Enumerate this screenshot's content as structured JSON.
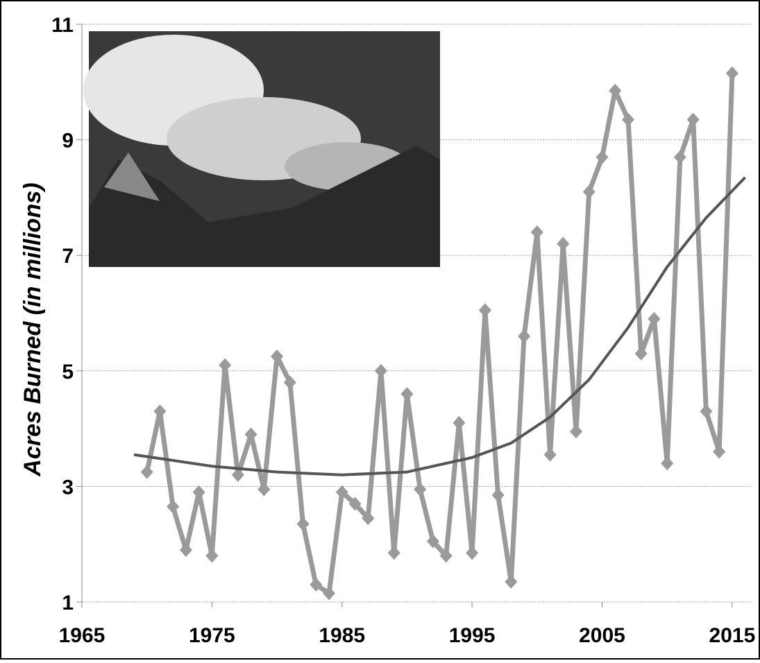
{
  "chart_data": {
    "type": "line",
    "y_label": "Acres Burned (in millions)",
    "xlim": [
      1965,
      2016.5
    ],
    "ylim": [
      1,
      11
    ],
    "xticks": [
      1965,
      1975,
      1985,
      1995,
      2005,
      2015
    ],
    "yticks": [
      1,
      3,
      5,
      7,
      9,
      11
    ],
    "grid": true,
    "series": [
      {
        "color": "#9a9a9a",
        "marker": "diamond",
        "x": [
          1970,
          1971,
          1972,
          1973,
          1974,
          1975,
          1976,
          1977,
          1978,
          1979,
          1980,
          1981,
          1982,
          1983,
          1984,
          1985,
          1986,
          1987,
          1988,
          1989,
          1990,
          1991,
          1992,
          1993,
          1994,
          1995,
          1996,
          1997,
          1998,
          1999,
          2000,
          2001,
          2002,
          2003,
          2004,
          2005,
          2006,
          2007,
          2008,
          2009,
          2010,
          2011,
          2012,
          2013,
          2014,
          2015
        ],
        "values": [
          3.25,
          4.3,
          2.65,
          1.9,
          2.9,
          1.8,
          5.1,
          3.2,
          3.9,
          2.95,
          5.25,
          4.8,
          2.35,
          1.3,
          1.15,
          2.9,
          2.7,
          2.45,
          5.0,
          1.85,
          4.6,
          2.95,
          2.05,
          1.8,
          4.1,
          1.85,
          6.05,
          2.85,
          1.35,
          5.6,
          7.4,
          3.55,
          7.2,
          3.95,
          8.1,
          8.7,
          9.85,
          9.35,
          5.3,
          5.9,
          3.4,
          8.7,
          9.35,
          4.3,
          3.6,
          10.15
        ]
      },
      {
        "color": "#555555",
        "marker": "none",
        "x": [
          1969,
          1972,
          1975,
          1980,
          1985,
          1990,
          1995,
          1998,
          2001,
          2004,
          2007,
          2010,
          2013,
          2016
        ],
        "values": [
          3.55,
          3.45,
          3.35,
          3.25,
          3.2,
          3.25,
          3.5,
          3.75,
          4.2,
          4.85,
          5.75,
          6.8,
          7.65,
          8.35
        ]
      }
    ]
  }
}
